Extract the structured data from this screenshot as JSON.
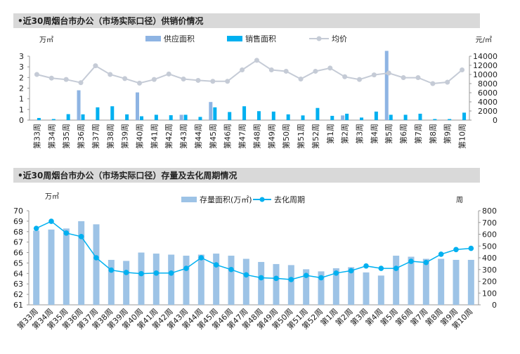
{
  "colors": {
    "supply": "#8eb4e3",
    "sales": "#00b0f0",
    "price_line": "#c5cbd6",
    "price_marker": "#c5cbd6",
    "stock": "#9dc3e6",
    "cycle": "#00b0f0",
    "title_bg": "#d9d9d9"
  },
  "chart_data": [
    {
      "type": "bar",
      "title": "•近30周烟台市办公（市场实际口径）供销价情况",
      "left_unit": "万㎡",
      "right_unit": "元/㎡",
      "categories": [
        "第33周",
        "第34周",
        "第35周",
        "第36周",
        "第37周",
        "第38周",
        "第39周",
        "第40周",
        "第41周",
        "第42周",
        "第43周",
        "第44周",
        "第45周",
        "第46周",
        "第47周",
        "第48周",
        "第49周",
        "第50周",
        "第51周",
        "第52周",
        "第1周",
        "第2周",
        "第3周",
        "第4周",
        "第5周",
        "第6周",
        "第7周",
        "第8周",
        "第9周",
        "第10周"
      ],
      "y_ticks_left": [
        "0",
        "1",
        "1",
        "2",
        "2",
        "3",
        "3"
      ],
      "y_range_left": [
        0,
        3
      ],
      "y_range_right": [
        0,
        14000
      ],
      "y_ticks_right": [
        0,
        2000,
        4000,
        6000,
        8000,
        10000,
        12000,
        14000
      ],
      "legend": [
        "供应面积",
        "销售面积",
        "均价"
      ],
      "series": [
        {
          "name": "供应面积",
          "kind": "bar",
          "values": [
            0,
            0,
            0,
            1.4,
            0,
            0,
            0,
            1.3,
            0,
            0,
            0.25,
            0,
            0.85,
            0,
            0,
            0,
            0,
            0,
            0,
            0,
            0,
            0.22,
            0,
            0,
            3.25,
            0,
            0,
            0,
            0,
            0
          ]
        },
        {
          "name": "销售面积",
          "kind": "bar",
          "values": [
            0.1,
            0.05,
            0.28,
            0.27,
            0.6,
            0.65,
            0.27,
            0.18,
            0.25,
            0.23,
            0.25,
            0.15,
            0.6,
            0.38,
            0.65,
            0.42,
            0.4,
            0.27,
            0.22,
            0.57,
            0.2,
            0.3,
            0.12,
            0.4,
            0.25,
            0.25,
            0.3,
            0.05,
            0.05,
            0.35
          ]
        },
        {
          "name": "均价",
          "kind": "line",
          "values": [
            10000,
            9200,
            8900,
            8200,
            11900,
            10000,
            9100,
            8100,
            8900,
            10100,
            9000,
            8700,
            8500,
            8500,
            11000,
            13100,
            11000,
            10700,
            9000,
            10700,
            11400,
            9500,
            8900,
            9900,
            10300,
            9300,
            9300,
            8000,
            8300,
            11000
          ]
        }
      ]
    },
    {
      "type": "bar",
      "title": "•近30周烟台市办公（市场实际口径）存量及去化周期情况",
      "left_unit": "万㎡",
      "right_unit": "周",
      "categories": [
        "第33周",
        "第34周",
        "第35周",
        "第36周",
        "第37周",
        "第38周",
        "第39周",
        "第40周",
        "第41周",
        "第42周",
        "第43周",
        "第44周",
        "第45周",
        "第46周",
        "第47周",
        "第48周",
        "第49周",
        "第50周",
        "第51周",
        "第52周",
        "第1周",
        "第2周",
        "第3周",
        "第4周",
        "第5周",
        "第6周",
        "第7周",
        "第8周",
        "第9周",
        "第10周"
      ],
      "y_range_left": [
        61,
        70
      ],
      "y_ticks_left": [
        61,
        62,
        63,
        64,
        65,
        66,
        67,
        68,
        69,
        70
      ],
      "y_range_right": [
        0,
        800
      ],
      "y_ticks_right": [
        0,
        100,
        200,
        300,
        400,
        500,
        600,
        700,
        800
      ],
      "legend": [
        "存量面积(万㎡)",
        "去化周期"
      ],
      "series": [
        {
          "name": "存量面积(万㎡)",
          "kind": "bar",
          "values": [
            68.1,
            68.2,
            68.3,
            69.0,
            68.7,
            65.3,
            65.2,
            66.0,
            65.9,
            65.8,
            65.7,
            65.8,
            65.9,
            65.7,
            65.4,
            65.1,
            64.9,
            64.8,
            64.4,
            64.2,
            64.5,
            64.6,
            64.1,
            63.8,
            65.7,
            65.6,
            65.4,
            65.4,
            65.3,
            65.3
          ]
        },
        {
          "name": "去化周期",
          "kind": "line",
          "values": [
            650,
            710,
            610,
            580,
            400,
            295,
            275,
            265,
            270,
            270,
            310,
            400,
            340,
            300,
            255,
            230,
            225,
            215,
            250,
            230,
            270,
            290,
            330,
            310,
            310,
            370,
            360,
            430,
            470,
            480
          ]
        }
      ]
    }
  ]
}
